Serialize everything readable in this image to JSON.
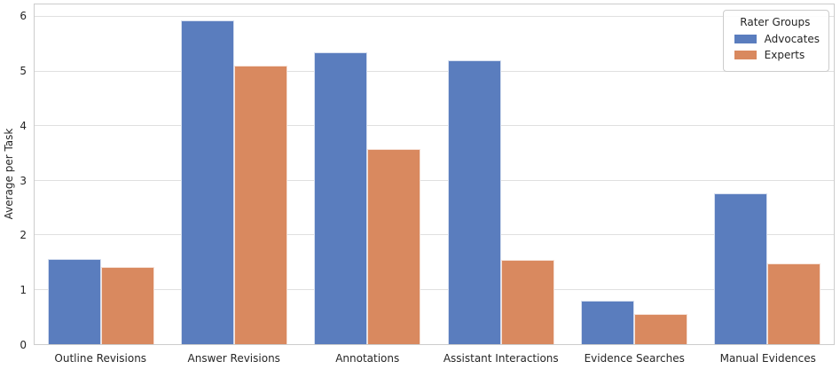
{
  "chart_data": {
    "type": "bar",
    "title": "",
    "xlabel": "",
    "ylabel": "Average per Task",
    "categories": [
      "Outline Revisions",
      "Answer Revisions",
      "Annotations",
      "Assistant Interactions",
      "Evidence Searches",
      "Manual Evidences"
    ],
    "series": [
      {
        "name": "Advocates",
        "color": "#5a7dbe",
        "values": [
          1.56,
          5.93,
          5.36,
          5.2,
          0.8,
          2.76
        ]
      },
      {
        "name": "Experts",
        "color": "#d9895f",
        "values": [
          1.41,
          5.11,
          3.58,
          1.55,
          0.55,
          1.48
        ]
      }
    ],
    "yticks": [
      0,
      1,
      2,
      3,
      4,
      5,
      6
    ],
    "ylim": [
      0,
      6.23
    ],
    "grid": "horizontal",
    "legend": {
      "title": "Rater Groups",
      "position": "upper-right"
    },
    "bar_group_fraction": 0.8
  }
}
